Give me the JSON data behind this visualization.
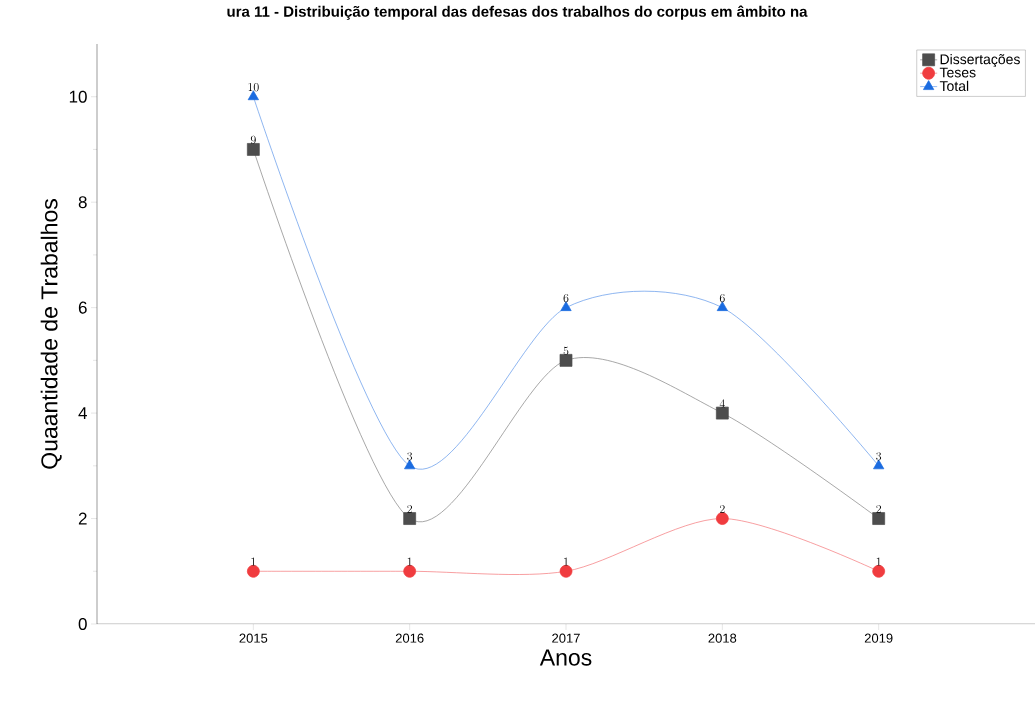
{
  "chart_data": {
    "type": "line",
    "title": "ura 11 - Distribuição temporal das defesas dos trabalhos do corpus em âmbito na",
    "xlabel": "Anos",
    "ylabel": "Quaantidade de Trabalhos",
    "x": [
      2015,
      2016,
      2017,
      2018,
      2019
    ],
    "series": [
      {
        "name": "Dissertações",
        "color": "#4d4d4d",
        "marker": "square",
        "values": [
          9,
          2,
          5,
          4,
          2
        ]
      },
      {
        "name": "Teses",
        "color": "#f03c3f",
        "marker": "circle",
        "values": [
          1,
          1,
          1,
          2,
          1
        ]
      },
      {
        "name": "Total",
        "color": "#1a6be0",
        "marker": "triangle",
        "values": [
          10,
          3,
          6,
          6,
          3
        ]
      }
    ],
    "xlim": [
      2014,
      2020
    ],
    "ylim": [
      0,
      11
    ],
    "xticks": [
      2015,
      2016,
      2017,
      2018,
      2019
    ],
    "yticks": [
      0,
      2,
      4,
      6,
      8,
      10
    ],
    "data_labels": true,
    "legend": "top right",
    "grid": false,
    "line_style": "solid"
  }
}
